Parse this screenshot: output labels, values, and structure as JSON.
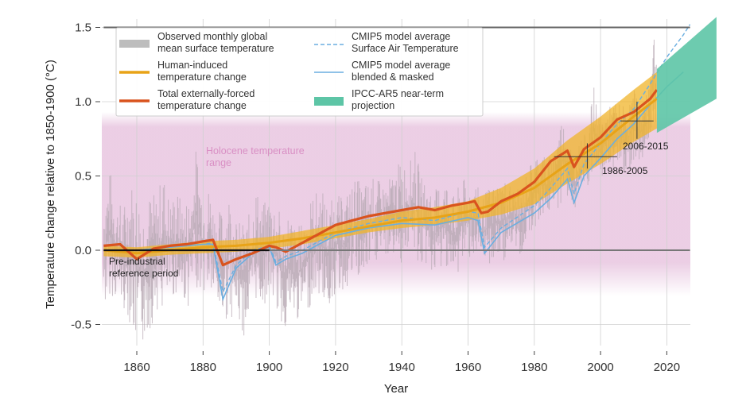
{
  "chart_data": {
    "type": "line",
    "title": "",
    "xlabel": "Year",
    "ylabel": "Temperature change relative to 1850-1900 (°C)",
    "xlim": [
      1850,
      2027
    ],
    "ylim": [
      -0.75,
      1.55
    ],
    "x_ticks": [
      1860,
      1880,
      1900,
      1920,
      1940,
      1960,
      1980,
      2000,
      2020
    ],
    "x_tick_labels": [
      "1860",
      "1880",
      "1900",
      "1920",
      "1940",
      "1960",
      "1980",
      "2000",
      "2020"
    ],
    "y_ticks": [
      -0.5,
      0.0,
      0.5,
      1.0,
      1.5
    ],
    "y_tick_labels": [
      "-0.5",
      "0.0",
      "0.5",
      "1.0",
      "1.5"
    ],
    "grid": true,
    "legend_position": "top-left",
    "legend": [
      {
        "key": "observed",
        "label_lines": [
          "Observed monthly global",
          "mean surface temperature"
        ],
        "swatch": "patch",
        "color": "#bdbdbd"
      },
      {
        "key": "human",
        "label_lines": [
          "Human-induced",
          "temperature change"
        ],
        "swatch": "line",
        "color": "#e8a317"
      },
      {
        "key": "total",
        "label_lines": [
          "Total externally-forced",
          "temperature change"
        ],
        "swatch": "line",
        "color": "#d9531e"
      },
      {
        "key": "cmip5_sat",
        "label_lines": [
          "CMIP5 model average",
          "Surface Air Temperature"
        ],
        "swatch": "dashed",
        "color": "#6aaee0"
      },
      {
        "key": "cmip5_blended",
        "label_lines": [
          "CMIP5 model average",
          "blended & masked"
        ],
        "swatch": "line",
        "color": "#6aaee0"
      },
      {
        "key": "ar5",
        "label_lines": [
          "IPCC-AR5 near-term",
          "projection"
        ],
        "swatch": "patch",
        "color": "#5dc5a6"
      }
    ],
    "reference_lines": [
      {
        "name": "1.5-level",
        "y": 1.5,
        "x_range": [
          1850,
          2027
        ],
        "color": "#666666"
      },
      {
        "name": "zero-level",
        "y": 0.0,
        "x_range": [
          1850,
          2027
        ],
        "color": "#777777"
      },
      {
        "name": "pre-industrial-reference",
        "y": 0.0,
        "x_range": [
          1850,
          1900
        ],
        "color": "#111111"
      }
    ],
    "holocene_range": {
      "y_range": [
        -0.2,
        0.85
      ],
      "color": "#e8c6e0",
      "label_lines": [
        "Holocene temperature",
        "range"
      ]
    },
    "annotations": [
      {
        "text_lines": [
          "Pre-industrial",
          "reference period"
        ],
        "x": 1852,
        "y": -0.12
      },
      {
        "text_lines": [
          "1986-2005"
        ],
        "x": 1998,
        "y": 0.55,
        "crosshair": {
          "x_range": [
            1986,
            2005
          ],
          "center_x": 1996,
          "y": 0.63,
          "v_range": [
            0.55,
            0.72
          ]
        }
      },
      {
        "text_lines": [
          "2006-2015"
        ],
        "x": 2006,
        "y": 0.75,
        "crosshair": {
          "x_range": [
            2006,
            2016
          ],
          "center_x": 2011,
          "y": 0.87,
          "v_range": [
            0.75,
            1.0
          ]
        }
      }
    ],
    "series": [
      {
        "name": "Observed monthly global mean surface temperature",
        "key": "observed",
        "years": [
          1850,
          1852,
          1854,
          1856,
          1858,
          1860,
          1862,
          1864,
          1866,
          1868,
          1870,
          1872,
          1874,
          1876,
          1878,
          1880,
          1882,
          1884,
          1886,
          1888,
          1890,
          1892,
          1894,
          1896,
          1898,
          1900,
          1902,
          1904,
          1906,
          1908,
          1910,
          1912,
          1914,
          1916,
          1918,
          1920,
          1922,
          1924,
          1926,
          1928,
          1930,
          1932,
          1934,
          1936,
          1938,
          1940,
          1942,
          1944,
          1946,
          1948,
          1950,
          1952,
          1954,
          1956,
          1958,
          1960,
          1962,
          1964,
          1966,
          1968,
          1970,
          1972,
          1974,
          1976,
          1978,
          1980,
          1982,
          1984,
          1986,
          1988,
          1990,
          1992,
          1994,
          1996,
          1998,
          2000,
          2002,
          2004,
          2006,
          2008,
          2010,
          2012,
          2014,
          2016,
          2017
        ],
        "high": [
          0.45,
          0.55,
          0.35,
          0.3,
          0.5,
          0.45,
          0.35,
          0.4,
          0.38,
          0.55,
          0.35,
          0.42,
          0.32,
          0.4,
          0.72,
          0.4,
          0.45,
          0.25,
          0.3,
          0.42,
          0.2,
          0.2,
          0.25,
          0.45,
          0.3,
          0.4,
          0.35,
          0.2,
          0.3,
          0.15,
          0.2,
          0.35,
          0.4,
          0.42,
          0.3,
          0.4,
          0.35,
          0.42,
          0.5,
          0.45,
          0.48,
          0.5,
          0.45,
          0.48,
          0.55,
          0.62,
          0.58,
          0.68,
          0.5,
          0.45,
          0.4,
          0.5,
          0.48,
          0.35,
          0.5,
          0.45,
          0.5,
          0.35,
          0.42,
          0.45,
          0.5,
          0.48,
          0.42,
          0.4,
          0.55,
          0.65,
          0.7,
          0.6,
          0.72,
          0.9,
          0.85,
          0.62,
          0.75,
          0.8,
          1.1,
          0.9,
          0.95,
          1.0,
          1.0,
          0.95,
          1.1,
          0.98,
          1.05,
          1.55,
          1.3
        ],
        "low": [
          -0.45,
          -0.3,
          -0.35,
          -0.4,
          -0.5,
          -0.72,
          -0.65,
          -0.55,
          -0.4,
          -0.45,
          -0.35,
          -0.3,
          -0.35,
          -0.4,
          -0.25,
          -0.3,
          -0.3,
          -0.4,
          -0.5,
          -0.45,
          -0.45,
          -0.6,
          -0.5,
          -0.35,
          -0.4,
          -0.3,
          -0.4,
          -0.55,
          -0.5,
          -0.5,
          -0.45,
          -0.4,
          -0.3,
          -0.35,
          -0.4,
          -0.3,
          -0.3,
          -0.25,
          -0.2,
          -0.25,
          -0.15,
          -0.1,
          -0.05,
          -0.05,
          -0.05,
          -0.1,
          0.0,
          -0.05,
          -0.15,
          -0.1,
          -0.2,
          -0.15,
          -0.1,
          -0.25,
          -0.1,
          -0.05,
          -0.05,
          -0.15,
          -0.1,
          -0.1,
          -0.1,
          -0.05,
          0.0,
          -0.05,
          0.1,
          0.15,
          0.2,
          0.25,
          0.25,
          0.3,
          0.35,
          0.25,
          0.35,
          0.4,
          0.5,
          0.45,
          0.55,
          0.55,
          0.55,
          0.5,
          0.6,
          0.6,
          0.65,
          0.85,
          0.85
        ]
      },
      {
        "name": "Human-induced temperature change",
        "key": "human",
        "years": [
          1850,
          1860,
          1870,
          1880,
          1890,
          1900,
          1910,
          1920,
          1930,
          1940,
          1950,
          1960,
          1970,
          1980,
          1990,
          2000,
          2010,
          2017
        ],
        "values": [
          0.0,
          -0.02,
          0.0,
          0.02,
          0.03,
          0.05,
          0.08,
          0.12,
          0.16,
          0.2,
          0.22,
          0.26,
          0.32,
          0.42,
          0.58,
          0.72,
          0.9,
          1.02
        ]
      },
      {
        "name": "Human-induced uncertainty band",
        "key": "human_band",
        "years": [
          1850,
          1860,
          1870,
          1880,
          1890,
          1900,
          1910,
          1920,
          1930,
          1940,
          1950,
          1960,
          1970,
          1980,
          1990,
          2000,
          2010,
          2017
        ],
        "upper": [
          0.03,
          0.02,
          0.04,
          0.06,
          0.07,
          0.09,
          0.13,
          0.17,
          0.21,
          0.26,
          0.29,
          0.33,
          0.42,
          0.55,
          0.74,
          0.9,
          1.08,
          1.2
        ],
        "lower": [
          -0.04,
          -0.05,
          -0.03,
          -0.02,
          -0.01,
          0.01,
          0.04,
          0.08,
          0.12,
          0.15,
          0.17,
          0.2,
          0.24,
          0.31,
          0.45,
          0.58,
          0.73,
          0.82
        ]
      },
      {
        "name": "Total externally-forced temperature change",
        "key": "total",
        "years": [
          1850,
          1855,
          1860,
          1865,
          1870,
          1875,
          1880,
          1883,
          1886,
          1890,
          1895,
          1900,
          1902,
          1905,
          1910,
          1915,
          1920,
          1925,
          1930,
          1935,
          1940,
          1945,
          1950,
          1955,
          1960,
          1962,
          1964,
          1966,
          1970,
          1975,
          1980,
          1985,
          1990,
          1992,
          1995,
          2000,
          2005,
          2010,
          2015,
          2017
        ],
        "values": [
          0.03,
          0.04,
          -0.06,
          0.01,
          0.03,
          0.04,
          0.06,
          0.07,
          -0.1,
          -0.06,
          -0.02,
          0.03,
          0.02,
          -0.01,
          0.05,
          0.11,
          0.17,
          0.2,
          0.23,
          0.25,
          0.27,
          0.29,
          0.27,
          0.3,
          0.32,
          0.33,
          0.25,
          0.26,
          0.33,
          0.38,
          0.46,
          0.6,
          0.67,
          0.56,
          0.68,
          0.76,
          0.88,
          0.93,
          1.02,
          1.08
        ]
      },
      {
        "name": "CMIP5 model average Surface Air Temperature",
        "key": "cmip5_sat",
        "years": [
          1860,
          1870,
          1880,
          1883,
          1886,
          1890,
          1895,
          1900,
          1902,
          1905,
          1910,
          1920,
          1930,
          1940,
          1950,
          1960,
          1963,
          1965,
          1970,
          1980,
          1985,
          1990,
          1992,
          1995,
          2000,
          2005,
          2010,
          2015,
          2020,
          2025,
          2027
        ],
        "values": [
          0.0,
          0.02,
          0.04,
          0.05,
          -0.28,
          -0.1,
          0.0,
          0.03,
          -0.08,
          -0.04,
          0.0,
          0.12,
          0.18,
          0.22,
          0.2,
          0.26,
          0.25,
          0.02,
          0.15,
          0.3,
          0.42,
          0.55,
          0.38,
          0.58,
          0.72,
          0.85,
          0.95,
          1.12,
          1.3,
          1.45,
          1.52
        ]
      },
      {
        "name": "CMIP5 model average blended & masked",
        "key": "cmip5_blended",
        "years": [
          1860,
          1870,
          1880,
          1883,
          1886,
          1890,
          1895,
          1900,
          1902,
          1905,
          1910,
          1920,
          1930,
          1940,
          1950,
          1960,
          1963,
          1965,
          1970,
          1980,
          1985,
          1990,
          1992,
          1995,
          2000,
          2005,
          2010,
          2015,
          2020,
          2025
        ],
        "values": [
          0.0,
          0.02,
          0.04,
          0.04,
          -0.33,
          -0.12,
          -0.02,
          0.02,
          -0.1,
          -0.06,
          -0.02,
          0.1,
          0.15,
          0.18,
          0.17,
          0.22,
          0.2,
          -0.02,
          0.12,
          0.25,
          0.35,
          0.48,
          0.32,
          0.5,
          0.62,
          0.75,
          0.85,
          0.98,
          1.1,
          1.2
        ]
      },
      {
        "name": "IPCC-AR5 near-term projection",
        "key": "ar5",
        "years": [
          2017,
          2035
        ],
        "upper": [
          1.22,
          1.57
        ],
        "lower": [
          0.79,
          1.02
        ]
      }
    ]
  }
}
